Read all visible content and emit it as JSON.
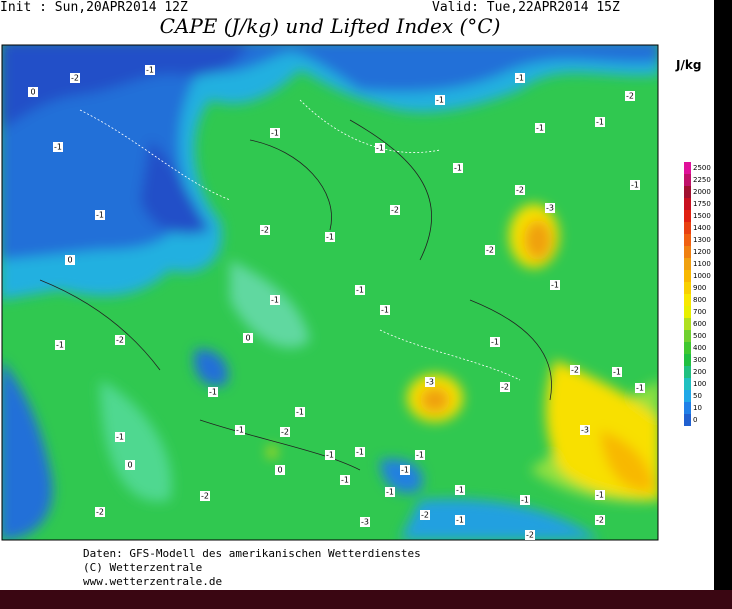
{
  "header": {
    "init": "Init : Sun,20APR2014 12Z",
    "valid": "Valid: Tue,22APR2014 15Z",
    "title": "CAPE (J/kg) und Lifted Index (°C)"
  },
  "colorbar": {
    "unit": "J/kg",
    "levels": [
      2500,
      2250,
      2000,
      1750,
      1500,
      1400,
      1300,
      1200,
      1100,
      1000,
      900,
      800,
      700,
      600,
      500,
      400,
      300,
      200,
      100,
      50,
      10,
      0
    ],
    "colors": [
      "#e0109a",
      "#c0106a",
      "#a01030",
      "#c81020",
      "#e02010",
      "#e84010",
      "#f06010",
      "#f08010",
      "#f0a010",
      "#f8b800",
      "#f8d000",
      "#f8e800",
      "#e8f000",
      "#b0e020",
      "#70d030",
      "#40c830",
      "#20c040",
      "#20c080",
      "#20c0c0",
      "#20a8e8",
      "#2080e8",
      "#2060d0"
    ]
  },
  "map": {
    "labels": [
      "0",
      "-2",
      "-1",
      "-1",
      "-1",
      "-1",
      "-1",
      "-1",
      "-2",
      "-1",
      "-1",
      "-1",
      "-2",
      "-3",
      "-1",
      "-2",
      "-2",
      "-1",
      "-2",
      "-1",
      "0",
      "-1",
      "-1",
      "-1",
      "-1",
      "-2",
      "-1",
      "0",
      "-1",
      "-2",
      "-1",
      "-3",
      "-2",
      "-1",
      "-1",
      "-1",
      "-1",
      "-3",
      "-1",
      "-2",
      "0",
      "-1",
      "-1",
      "-1",
      "-2",
      "-2",
      "-1",
      "-1",
      "-1",
      "-1",
      "-2",
      "-3",
      "-2",
      "-1",
      "-2",
      "-1",
      "-1",
      "0"
    ]
  },
  "footer": {
    "lines": [
      "Daten: GFS-Modell des amerikanischen Wetterdienstes",
      "(C) Wetterzentrale",
      "www.wetterzentrale.de"
    ]
  }
}
